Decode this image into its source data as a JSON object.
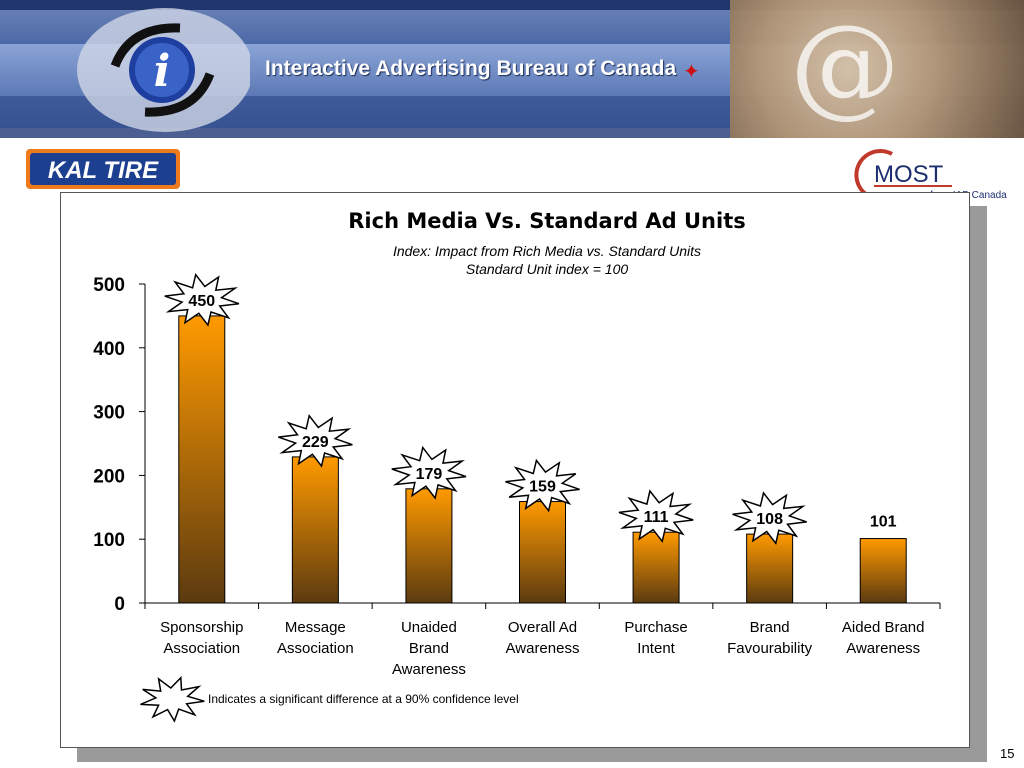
{
  "header": {
    "org_name": "Interactive Advertising Bureau of Canada",
    "kal_logo_text": "KAL TIRE",
    "cmost_logo_text": "MOST",
    "cmost_sub": "from IAB Canada"
  },
  "chart_data": {
    "type": "bar",
    "title": "Rich Media Vs. Standard Ad Units",
    "subtitle_lines": [
      "Index:  Impact from Rich Media vs. Standard Units",
      "Standard Unit index = 100"
    ],
    "categories": [
      [
        "Sponsorship",
        "Association"
      ],
      [
        "Message",
        "Association"
      ],
      [
        "Unaided",
        "Brand",
        "Awareness"
      ],
      [
        "Overall Ad",
        "Awareness"
      ],
      [
        "Purchase",
        "Intent"
      ],
      [
        "Brand",
        "Favourability"
      ],
      [
        "Aided Brand",
        "Awareness"
      ]
    ],
    "values": [
      450,
      229,
      179,
      159,
      111,
      108,
      101
    ],
    "significant": [
      true,
      true,
      true,
      true,
      true,
      true,
      false
    ],
    "ylim": [
      0,
      500
    ],
    "yticks": [
      0,
      100,
      200,
      300,
      400,
      500
    ],
    "grid": false,
    "colors": {
      "bar_top": "#FF9A00",
      "bar_bottom": "#5B3A10",
      "star": "#ffffff"
    },
    "legend_note": "Indicates a significant difference at a 90% confidence level"
  },
  "page_number": "15"
}
